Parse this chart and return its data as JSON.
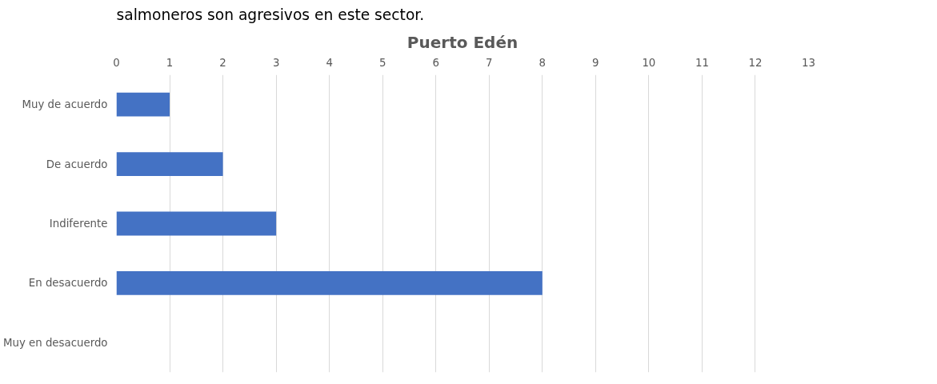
{
  "chart_data": {
    "type": "bar",
    "orientation": "horizontal",
    "title": "Puerto Edén",
    "annotations": [
      "salmoneros son agresivos en este sector."
    ],
    "categories": [
      "Muy de acuerdo",
      "De acuerdo",
      "Indiferente",
      "En desacuerdo",
      "Muy en desacuerdo"
    ],
    "values": [
      1,
      2,
      3,
      8,
      0
    ],
    "color": "#4472c4",
    "xlim": [
      0,
      13
    ],
    "xticks": [
      0,
      1,
      2,
      3,
      4,
      5,
      6,
      7,
      8,
      9,
      10,
      11,
      12,
      13
    ],
    "grid": "x"
  }
}
